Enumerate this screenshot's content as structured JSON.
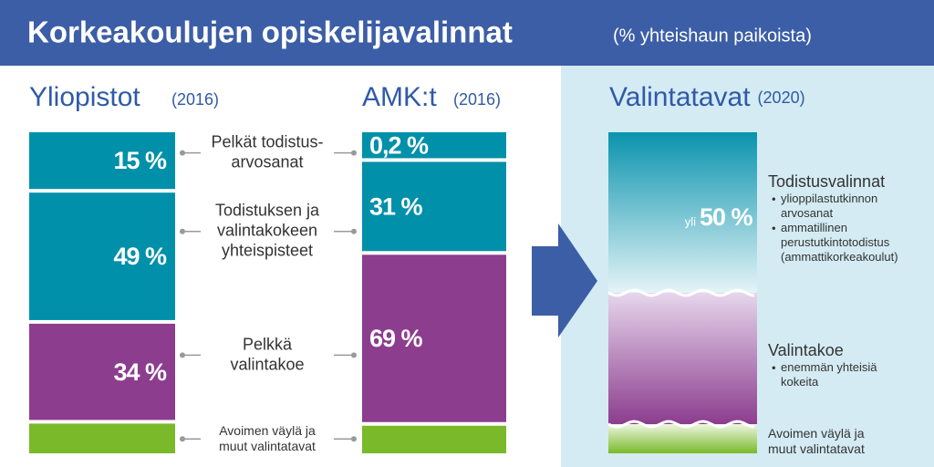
{
  "header": {
    "title": "Korkeakoulujen opiskelijavalinnat",
    "subtitle": "(% yhteishaun paikoista)"
  },
  "chart_data": {
    "type": "stacked-bar",
    "categories": [
      "Yliopistot",
      "AMK:t"
    ],
    "category_years": [
      "(2016)",
      "(2016)"
    ],
    "series": [
      {
        "name": "Pelkät todistus-\narvosanat",
        "color": "#0090aa",
        "values": [
          15,
          0.2
        ],
        "value_labels": [
          "15 %",
          "0,2 %"
        ]
      },
      {
        "name": "Todistuksen ja\nvalintakokeen\nyhteispisteet",
        "color": "#0090aa",
        "values": [
          49,
          31
        ],
        "value_labels": [
          "49 %",
          "31 %"
        ]
      },
      {
        "name": "Pelkkä\nvalintakoe",
        "color": "#8c3d8e",
        "values": [
          34,
          69
        ],
        "value_labels": [
          "34 %",
          "69 %"
        ]
      },
      {
        "name": "Avoimen väylä ja\nmuut valintatavat",
        "color": "#7ab929",
        "values": [
          2,
          1
        ]
      }
    ]
  },
  "valintatavat": {
    "title": "Valintatavat",
    "year": "(2020)",
    "value_prefix": "yli",
    "value": 50,
    "value_label": "50 %",
    "groups": [
      {
        "title": "Todistusvalinnat",
        "items": [
          "ylioppilastutkinnon\narvosanat",
          "ammatillinen\nperustutkintotodistus\n(ammattikorkeakoulut)"
        ]
      },
      {
        "title": "Valintakoe",
        "items": [
          "enemmän yhteisiä\nkokeita"
        ]
      },
      {
        "title": "Avoimen väylä ja\nmuut valintatavat"
      }
    ]
  }
}
